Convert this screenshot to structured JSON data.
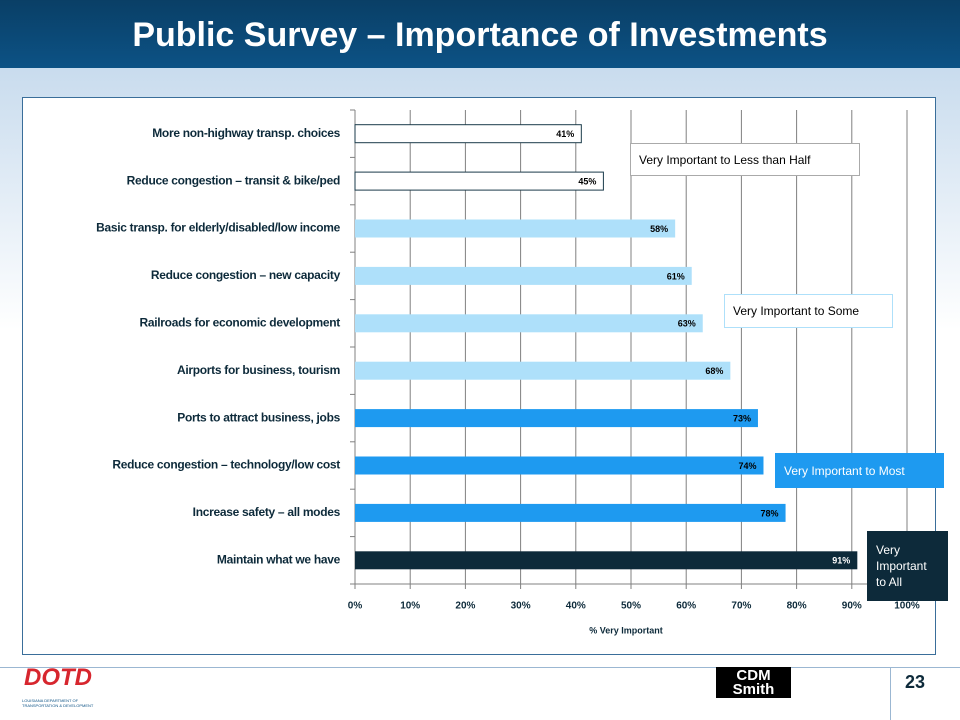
{
  "chart_data": {
    "type": "barh",
    "title": "Public Survey – Importance of Investments",
    "categories": [
      "More non-highway transp. choices",
      "Reduce congestion – transit & bike/ped",
      "Basic transp. for elderly/disabled/low income",
      "Reduce congestion – new capacity",
      "Railroads for economic development",
      "Airports for business, tourism",
      "Ports to attract business, jobs",
      "Reduce congestion – technology/low cost",
      "Increase safety – all modes",
      "Maintain what we have"
    ],
    "values": [
      41,
      45,
      58,
      61,
      63,
      68,
      73,
      74,
      78,
      91
    ],
    "value_labels": [
      "41%",
      "45%",
      "58%",
      "61%",
      "63%",
      "68%",
      "73%",
      "74%",
      "78%",
      "91%"
    ],
    "colors": [
      "#ffffff",
      "#ffffff",
      "#aee0fa",
      "#aee0fa",
      "#aee0fa",
      "#aee0fa",
      "#1e9af0",
      "#1e9af0",
      "#1e9af0",
      "#0d2a3a"
    ],
    "edgecolors": [
      "#1a3a4a",
      "#1a3a4a",
      "none",
      "none",
      "none",
      "none",
      "none",
      "none",
      "none",
      "none"
    ],
    "value_label_colors": [
      "#000000",
      "#000000",
      "#000000",
      "#000000",
      "#000000",
      "#000000",
      "#000000",
      "#000000",
      "#000000",
      "#ffffff"
    ],
    "xlabel": "% Very Important",
    "xlim": [
      0,
      100
    ],
    "xticks": [
      {
        "value": 0,
        "label": "0%"
      },
      {
        "value": 10,
        "label": "10%"
      },
      {
        "value": 20,
        "label": "20%"
      },
      {
        "value": 30,
        "label": "30%"
      },
      {
        "value": 40,
        "label": "40%"
      },
      {
        "value": 50,
        "label": "50%"
      },
      {
        "value": 60,
        "label": "60%"
      },
      {
        "value": 70,
        "label": "70%"
      },
      {
        "value": 80,
        "label": "80%"
      },
      {
        "value": 90,
        "label": "90%"
      },
      {
        "value": 100,
        "label": "100%"
      }
    ],
    "grid": true,
    "annotations": [
      {
        "text": "Very Important to Less than Half",
        "color": "#000000",
        "background": "#ffffff",
        "border": "#aaaaaa"
      },
      {
        "text": "Very Important to Some",
        "color": "#000000",
        "background": "#ffffff",
        "border": "#aee0fa"
      },
      {
        "text": "Very Important to Most",
        "color": "#ffffff",
        "background": "#1e9af0",
        "border": "#1e9af0"
      },
      {
        "text": "Very Important to All",
        "color": "#ffffff",
        "background": "#0d2a3a",
        "border": "#0d2a3a"
      }
    ]
  },
  "footer": {
    "logo_left": "DOTD",
    "logo_left_sub": "LOUISIANA DEPARTMENT OF TRANSPORTATION & DEVELOPMENT",
    "logo_right_1": "CDM",
    "logo_right_2": "Smith",
    "page_number": "23"
  }
}
